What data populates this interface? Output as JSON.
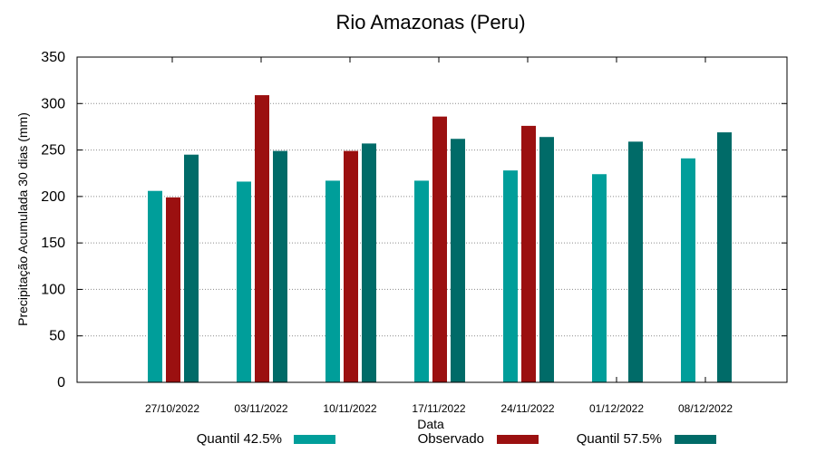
{
  "chart_data": {
    "type": "bar",
    "title": "Rio Amazonas (Peru)",
    "xlabel": "Data",
    "ylabel": "Precipitação Acumulada 30 dias (mm)",
    "ylim": [
      0,
      350
    ],
    "yticks": [
      0,
      50,
      100,
      150,
      200,
      250,
      300,
      350
    ],
    "grid": true,
    "legend_position": "bottom",
    "categories": [
      "27/10/2022",
      "03/11/2022",
      "10/11/2022",
      "17/11/2022",
      "24/11/2022",
      "01/12/2022",
      "08/12/2022"
    ],
    "series": [
      {
        "name": "Quantil 42.5%",
        "color": "#009e9a",
        "values": [
          206,
          216,
          217,
          217,
          228,
          224,
          241
        ]
      },
      {
        "name": "Observado",
        "color": "#9b1010",
        "values": [
          199,
          309,
          249,
          286,
          276,
          null,
          null
        ]
      },
      {
        "name": "Quantil 57.5%",
        "color": "#006b68",
        "values": [
          245,
          249,
          257,
          262,
          264,
          259,
          269
        ]
      }
    ]
  }
}
